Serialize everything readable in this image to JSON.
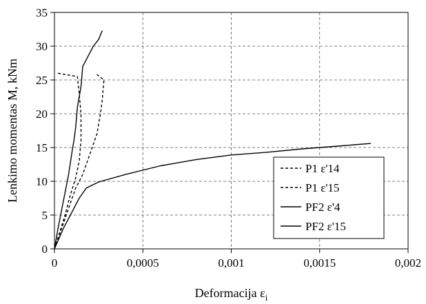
{
  "chart_data": {
    "type": "line",
    "title": "",
    "xlabel": "Deformacija ε",
    "xlabel_subscript": "i",
    "ylabel": "Lenkimo momentas M, kNm",
    "xlim": [
      0,
      0.002
    ],
    "ylim": [
      0,
      35
    ],
    "x_ticks": [
      0,
      0.0005,
      0.001,
      0.0015,
      0.002
    ],
    "x_tick_labels": [
      "0",
      "0,0005",
      "0,001",
      "0,0015",
      "0,002"
    ],
    "y_ticks": [
      0,
      5,
      10,
      15,
      20,
      25,
      30,
      35
    ],
    "y_tick_labels": [
      "0",
      "5",
      "10",
      "15",
      "20",
      "25",
      "30",
      "35"
    ],
    "grid": "dashed",
    "legend_position": "right-center",
    "series": [
      {
        "name": "P1 ε'14",
        "style": "dashed",
        "points": [
          [
            0,
            0
          ],
          [
            3e-05,
            2.5
          ],
          [
            6e-05,
            5
          ],
          [
            9e-05,
            8
          ],
          [
            0.00012,
            10.5
          ],
          [
            0.00014,
            13
          ],
          [
            0.00015,
            16
          ],
          [
            0.00015,
            20
          ],
          [
            0.00014,
            23
          ],
          [
            0.00013,
            25.5
          ],
          [
            2e-05,
            26
          ]
        ]
      },
      {
        "name": "P1 ε'15",
        "style": "dashed",
        "points": [
          [
            0,
            0
          ],
          [
            4e-05,
            3
          ],
          [
            8e-05,
            6
          ],
          [
            0.00012,
            9
          ],
          [
            0.00016,
            11
          ],
          [
            0.0002,
            14
          ],
          [
            0.00024,
            17
          ],
          [
            0.00026,
            20
          ],
          [
            0.00027,
            22
          ],
          [
            0.00028,
            25
          ],
          [
            0.00023,
            26
          ]
        ]
      },
      {
        "name": "PF2 ε'4",
        "style": "solid",
        "points": [
          [
            0,
            0
          ],
          [
            2e-05,
            3
          ],
          [
            5e-05,
            7
          ],
          [
            8e-05,
            11
          ],
          [
            0.0001,
            14.5
          ],
          [
            0.00011,
            16
          ],
          [
            0.00012,
            18
          ],
          [
            0.00013,
            21
          ],
          [
            0.00015,
            24
          ],
          [
            0.00016,
            27
          ],
          [
            0.00019,
            28.5
          ],
          [
            0.00022,
            30
          ],
          [
            0.00025,
            31
          ],
          [
            0.00027,
            32.3
          ]
        ]
      },
      {
        "name": "PF2 ε'15",
        "style": "solid",
        "points": [
          [
            0,
            0
          ],
          [
            5e-05,
            3
          ],
          [
            0.0001,
            5.5
          ],
          [
            0.00014,
            7.5
          ],
          [
            0.00018,
            9
          ],
          [
            0.00025,
            9.9
          ],
          [
            0.0004,
            11
          ],
          [
            0.0006,
            12.3
          ],
          [
            0.0008,
            13.2
          ],
          [
            0.001,
            13.9
          ],
          [
            0.0012,
            14.3
          ],
          [
            0.0014,
            14.8
          ],
          [
            0.0016,
            15.2
          ],
          [
            0.00179,
            15.6
          ]
        ]
      }
    ]
  }
}
